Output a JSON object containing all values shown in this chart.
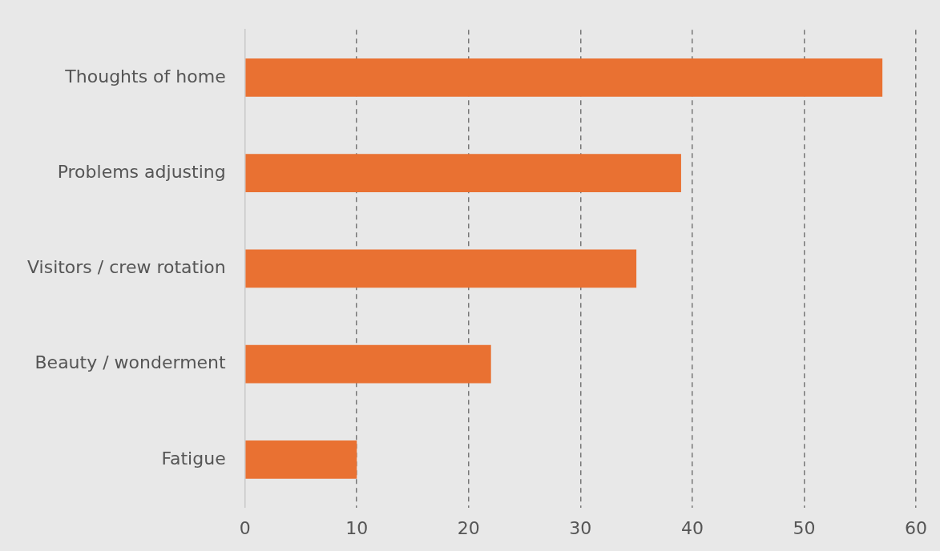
{
  "chart_data": {
    "type": "bar",
    "orientation": "horizontal",
    "categories": [
      "Thoughts of home",
      "Problems adjusting",
      "Visitors / crew rotation",
      "Beauty / wonderment",
      "Fatigue"
    ],
    "values": [
      57,
      39,
      35,
      22,
      10
    ],
    "color": "#e97132",
    "xlim": [
      0,
      60
    ],
    "xticks": [
      0,
      10,
      20,
      30,
      40,
      50,
      60
    ],
    "grid": "x",
    "line_style": "dashed",
    "legend": false
  }
}
